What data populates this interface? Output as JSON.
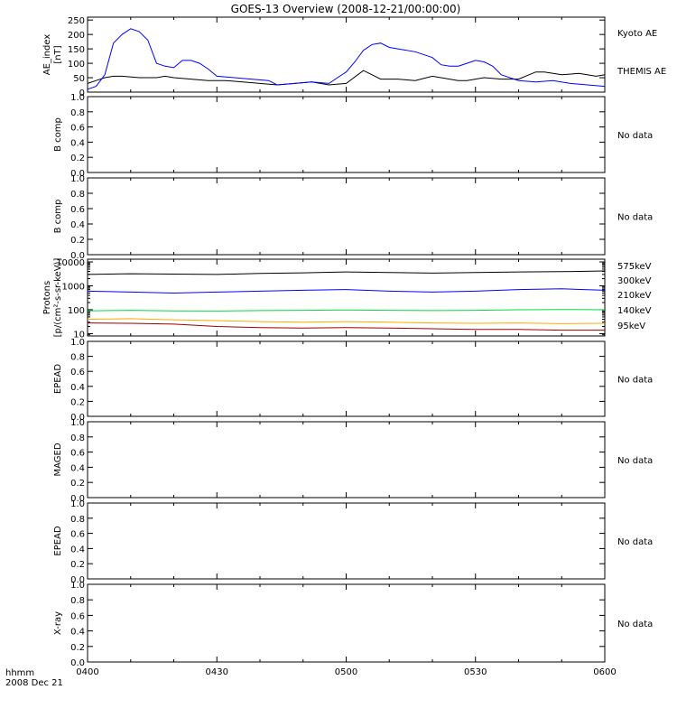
{
  "title": "GOES-13 Overview (2008-12-21/00:00:00)",
  "footer": {
    "line1": "hhmm",
    "line2": "2008 Dec 21"
  },
  "colors": {
    "black": "#000000",
    "blue": "#0000ff",
    "green": "#00dd44",
    "orange": "#ffaa00",
    "darkred": "#990000"
  },
  "xaxis": {
    "range": [
      0,
      120
    ],
    "ticks": [
      0,
      30,
      60,
      90,
      120
    ],
    "labels": [
      "0400",
      "0430",
      "0500",
      "0530",
      "0600"
    ]
  },
  "panels": [
    {
      "id": "ae",
      "ylabel": [
        "AE_index",
        "[nT]"
      ],
      "no_data": "",
      "yscale": "linear",
      "ylim": [
        0,
        260
      ],
      "yticks": [
        0,
        50,
        100,
        150,
        200,
        250
      ],
      "yticklabels": [
        "0",
        "50",
        "100",
        "150",
        "200",
        "250"
      ],
      "legend": [
        {
          "text": "Kyoto AE",
          "color": "#000000"
        },
        {
          "text": "THEMIS AE",
          "color": "#0000ff"
        }
      ]
    },
    {
      "id": "bcomp1",
      "ylabel": [
        "B comp"
      ],
      "no_data": "No data",
      "yscale": "linear",
      "ylim": [
        0,
        1
      ],
      "yticks": [
        0,
        0.2,
        0.4,
        0.6,
        0.8,
        1.0
      ],
      "yticklabels": [
        "0.0",
        "0.2",
        "0.4",
        "0.6",
        "0.8",
        "1.0"
      ],
      "legend": []
    },
    {
      "id": "bcomp2",
      "ylabel": [
        "B comp"
      ],
      "no_data": "No data",
      "yscale": "linear",
      "ylim": [
        0,
        1
      ],
      "yticks": [
        0,
        0.2,
        0.4,
        0.6,
        0.8,
        1.0
      ],
      "yticklabels": [
        "0.0",
        "0.2",
        "0.4",
        "0.6",
        "0.8",
        "1.0"
      ],
      "legend": []
    },
    {
      "id": "protons",
      "ylabel": [
        "Protons",
        "[p/(cm²-s-sr-keV)]"
      ],
      "no_data": "",
      "yscale": "log",
      "ylim": [
        8,
        13000
      ],
      "yticks": [
        10,
        100,
        1000,
        10000
      ],
      "yticklabels": [
        "10",
        "100",
        "1000",
        "10000"
      ],
      "legend": [
        {
          "text": "575keV",
          "color": "#990000"
        },
        {
          "text": "300keV",
          "color": "#ffaa00"
        },
        {
          "text": "210keV",
          "color": "#00dd44"
        },
        {
          "text": "140keV",
          "color": "#0000ff"
        },
        {
          "text": "95keV",
          "color": "#000000"
        }
      ]
    },
    {
      "id": "epead1",
      "ylabel": [
        "EPEAD"
      ],
      "no_data": "No data",
      "yscale": "linear",
      "ylim": [
        0,
        1
      ],
      "yticks": [
        0,
        0.2,
        0.4,
        0.6,
        0.8,
        1.0
      ],
      "yticklabels": [
        "0.0",
        "0.2",
        "0.4",
        "0.6",
        "0.8",
        "1.0"
      ],
      "legend": []
    },
    {
      "id": "maged",
      "ylabel": [
        "MAGED"
      ],
      "no_data": "No data",
      "yscale": "linear",
      "ylim": [
        0,
        1
      ],
      "yticks": [
        0,
        0.2,
        0.4,
        0.6,
        0.8,
        1.0
      ],
      "yticklabels": [
        "0.0",
        "0.2",
        "0.4",
        "0.6",
        "0.8",
        "1.0"
      ],
      "legend": []
    },
    {
      "id": "epead2",
      "ylabel": [
        "EPEAD"
      ],
      "no_data": "No data",
      "yscale": "linear",
      "ylim": [
        0,
        1
      ],
      "yticks": [
        0,
        0.2,
        0.4,
        0.6,
        0.8,
        1.0
      ],
      "yticklabels": [
        "0.0",
        "0.2",
        "0.4",
        "0.6",
        "0.8",
        "1.0"
      ],
      "legend": []
    },
    {
      "id": "xray",
      "ylabel": [
        "X-ray"
      ],
      "no_data": "No data",
      "yscale": "linear",
      "ylim": [
        0,
        1
      ],
      "yticks": [
        0,
        0.2,
        0.4,
        0.6,
        0.8,
        1.0
      ],
      "yticklabels": [
        "0.0",
        "0.2",
        "0.4",
        "0.6",
        "0.8",
        "1.0"
      ],
      "legend": []
    }
  ],
  "chart_data": {
    "type": "line",
    "title": "GOES-13 Overview (2008-12-21/00:00:00)",
    "x_units": "minutes after 04:00 UT",
    "ae_series": [
      {
        "name": "Kyoto AE",
        "color": "#000000",
        "x": [
          0,
          2,
          4,
          6,
          8,
          12,
          16,
          18,
          20,
          24,
          28,
          32,
          36,
          40,
          44,
          48,
          52,
          56,
          60,
          64,
          66,
          68,
          72,
          76,
          80,
          84,
          86,
          88,
          92,
          96,
          100,
          104,
          106,
          110,
          114,
          118,
          120
        ],
        "y": [
          30,
          40,
          50,
          55,
          55,
          50,
          50,
          55,
          50,
          45,
          40,
          40,
          35,
          30,
          25,
          30,
          35,
          25,
          30,
          75,
          60,
          45,
          45,
          40,
          55,
          45,
          40,
          40,
          50,
          45,
          45,
          70,
          70,
          60,
          65,
          55,
          60
        ]
      },
      {
        "name": "THEMIS AE",
        "color": "#0000ff",
        "x": [
          0,
          2,
          4,
          6,
          8,
          10,
          12,
          14,
          16,
          18,
          20,
          22,
          24,
          26,
          28,
          30,
          34,
          38,
          42,
          44,
          48,
          52,
          56,
          58,
          60,
          62,
          64,
          66,
          68,
          70,
          72,
          76,
          80,
          82,
          84,
          86,
          88,
          90,
          92,
          94,
          96,
          100,
          104,
          108,
          112,
          116,
          120
        ],
        "y": [
          10,
          20,
          60,
          170,
          200,
          220,
          210,
          180,
          100,
          90,
          85,
          110,
          110,
          100,
          80,
          55,
          50,
          45,
          40,
          25,
          30,
          35,
          30,
          50,
          70,
          105,
          145,
          165,
          170,
          155,
          150,
          140,
          120,
          95,
          90,
          90,
          100,
          110,
          105,
          90,
          60,
          40,
          35,
          40,
          30,
          25,
          20
        ]
      }
    ],
    "proton_series": [
      {
        "name": "95keV",
        "color": "#000000",
        "x": [
          0,
          10,
          20,
          30,
          40,
          50,
          60,
          70,
          80,
          90,
          100,
          110,
          120
        ],
        "y": [
          3000,
          3200,
          3100,
          3000,
          3300,
          3500,
          3800,
          3600,
          3400,
          3600,
          3800,
          3900,
          4200
        ]
      },
      {
        "name": "140keV",
        "color": "#0000ff",
        "x": [
          0,
          10,
          20,
          30,
          40,
          50,
          60,
          70,
          80,
          90,
          100,
          110,
          120
        ],
        "y": [
          600,
          550,
          500,
          550,
          600,
          650,
          700,
          600,
          550,
          600,
          700,
          750,
          650
        ]
      },
      {
        "name": "210keV",
        "color": "#00dd44",
        "x": [
          0,
          10,
          20,
          30,
          40,
          50,
          60,
          70,
          80,
          90,
          100,
          110,
          120
        ],
        "y": [
          90,
          95,
          90,
          88,
          92,
          95,
          98,
          95,
          92,
          95,
          100,
          102,
          100
        ]
      },
      {
        "name": "300keV",
        "color": "#ffaa00",
        "x": [
          0,
          10,
          20,
          30,
          40,
          50,
          60,
          70,
          80,
          90,
          100,
          110,
          120
        ],
        "y": [
          40,
          42,
          38,
          35,
          32,
          30,
          32,
          30,
          28,
          27,
          28,
          26,
          27
        ]
      },
      {
        "name": "575keV",
        "color": "#990000",
        "x": [
          0,
          10,
          20,
          30,
          40,
          50,
          60,
          70,
          80,
          90,
          100,
          110,
          120
        ],
        "y": [
          28,
          27,
          25,
          20,
          18,
          17,
          18,
          17,
          16,
          15,
          15,
          14,
          14
        ]
      }
    ]
  }
}
